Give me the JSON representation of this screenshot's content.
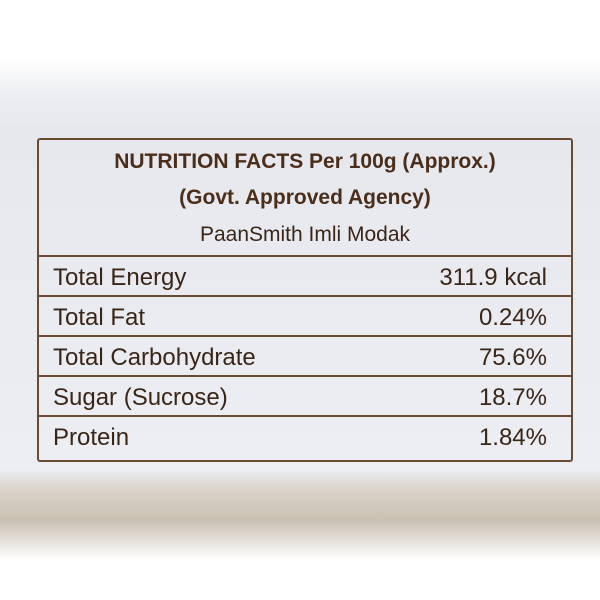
{
  "header": {
    "title": "NUTRITION FACTS Per 100g (Approx.)",
    "subtitle": "(Govt. Approved Agency)",
    "product": "PaanSmith Imli Modak"
  },
  "table": {
    "rows": [
      [
        "Total Energy",
        "311.9 kcal"
      ],
      [
        "Total Fat",
        "0.24%"
      ],
      [
        "Total Carbohydrate",
        "75.6%"
      ],
      [
        "Sugar (Sucrose)",
        "18.7%"
      ],
      [
        "Protein",
        "1.84%"
      ]
    ]
  }
}
